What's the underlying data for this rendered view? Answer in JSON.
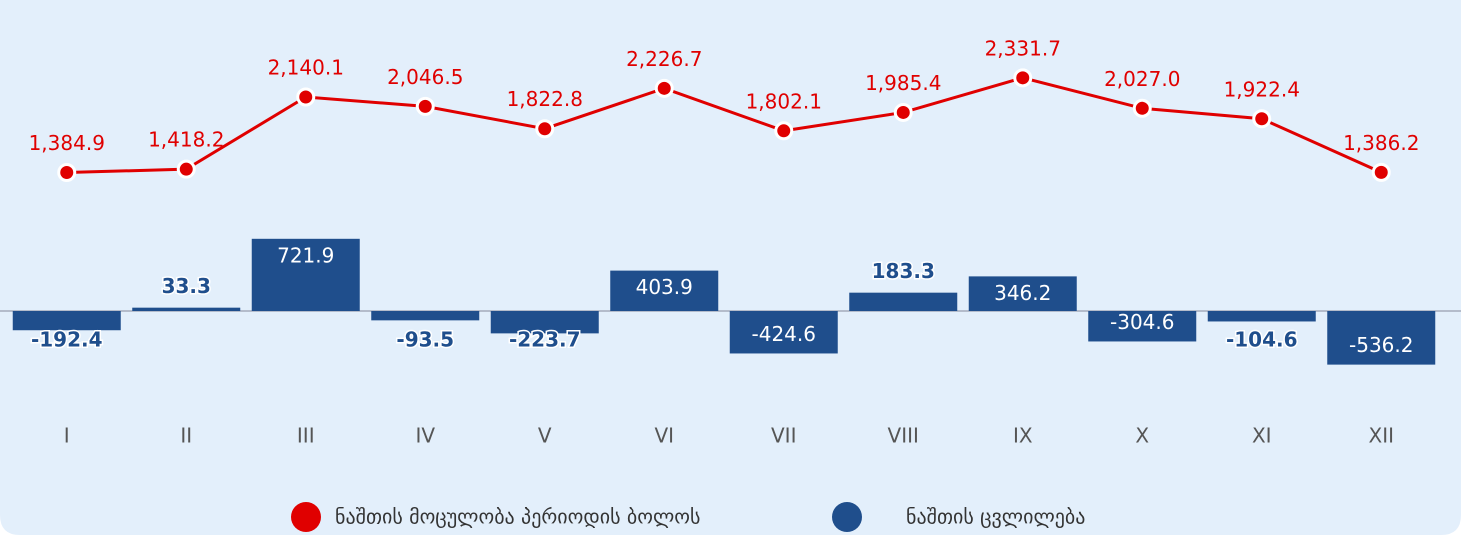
{
  "chart_data": {
    "type": "bar-line",
    "categories": [
      "I",
      "II",
      "III",
      "IV",
      "V",
      "VI",
      "VII",
      "VIII",
      "IX",
      "X",
      "XI",
      "XII"
    ],
    "series": [
      {
        "name": "ნაშთის მოცულობა პერიოდის ბოლოს",
        "type": "line",
        "color": "#e00000",
        "values": [
          1384.9,
          1418.2,
          2140.1,
          2046.5,
          1822.8,
          2226.7,
          1802.1,
          1985.4,
          2331.7,
          2027.0,
          1922.4,
          1386.2
        ],
        "value_labels": [
          "1,384.9",
          "1,418.2",
          "2,140.1",
          "2,046.5",
          "1,822.8",
          "2,226.7",
          "1,802.1",
          "1,985.4",
          "2,331.7",
          "2,027.0",
          "1,922.4",
          "1,386.2"
        ]
      },
      {
        "name": "ნაშთის ცვლილება",
        "type": "bar",
        "color": "#1f4e8c",
        "values": [
          -192.4,
          33.3,
          721.9,
          -93.5,
          -223.7,
          403.9,
          -424.6,
          183.3,
          346.2,
          -304.6,
          -104.6,
          -536.2
        ]
      }
    ],
    "legend": "bottom"
  }
}
